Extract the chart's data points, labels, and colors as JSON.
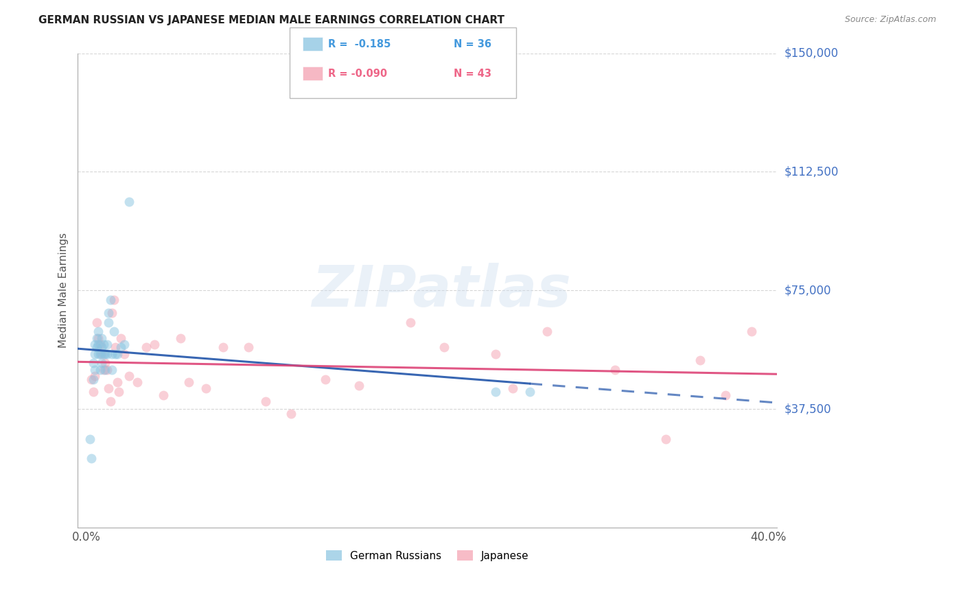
{
  "title": "GERMAN RUSSIAN VS JAPANESE MEDIAN MALE EARNINGS CORRELATION CHART",
  "source": "Source: ZipAtlas.com",
  "ylabel": "Median Male Earnings",
  "xlabel_ticks": [
    "0.0%",
    "",
    "",
    "",
    "",
    "",
    "",
    "",
    "40.0%"
  ],
  "xlabel_vals": [
    0.0,
    0.05,
    0.1,
    0.15,
    0.2,
    0.25,
    0.3,
    0.35,
    0.4
  ],
  "ylim": [
    0,
    150000
  ],
  "xlim": [
    -0.005,
    0.405
  ],
  "ytick_vals": [
    150000,
    112500,
    75000,
    37500
  ],
  "ytick_labels": [
    "$150,000",
    "$112,500",
    "$75,000",
    "$37,500"
  ],
  "watermark_text": "ZIPatlas",
  "german_russian_color": "#89c4e1",
  "japanese_color": "#f4a0b0",
  "background_color": "#ffffff",
  "grid_color": "#cccccc",
  "title_color": "#222222",
  "axis_label_color": "#555555",
  "right_label_color": "#4472c4",
  "dot_size": 100,
  "dot_alpha": 0.5,
  "blue_line_color": "#2255aa",
  "pink_line_color": "#dd4477",
  "legend_r1": "R =  -0.185",
  "legend_n1": "N = 36",
  "legend_r2": "R = -0.090",
  "legend_n2": "N = 43",
  "legend_color1": "#4499dd",
  "legend_color2": "#ee6688",
  "bottom_legend1": "German Russians",
  "bottom_legend2": "Japanese",
  "german_russian_x": [
    0.002,
    0.003,
    0.004,
    0.004,
    0.005,
    0.005,
    0.005,
    0.006,
    0.006,
    0.007,
    0.007,
    0.007,
    0.008,
    0.008,
    0.009,
    0.009,
    0.009,
    0.01,
    0.01,
    0.011,
    0.011,
    0.012,
    0.012,
    0.013,
    0.013,
    0.014,
    0.015,
    0.015,
    0.016,
    0.017,
    0.018,
    0.02,
    0.022,
    0.025,
    0.24,
    0.26
  ],
  "german_russian_y": [
    28000,
    22000,
    47000,
    52000,
    50000,
    55000,
    58000,
    57000,
    60000,
    55000,
    58000,
    62000,
    50000,
    55000,
    52000,
    57000,
    60000,
    55000,
    58000,
    50000,
    55000,
    55000,
    58000,
    65000,
    68000,
    72000,
    50000,
    55000,
    62000,
    55000,
    55000,
    57000,
    58000,
    103000,
    43000,
    43000
  ],
  "japanese_x": [
    0.003,
    0.004,
    0.005,
    0.006,
    0.007,
    0.008,
    0.009,
    0.01,
    0.011,
    0.012,
    0.013,
    0.014,
    0.015,
    0.016,
    0.017,
    0.018,
    0.019,
    0.02,
    0.022,
    0.025,
    0.03,
    0.035,
    0.04,
    0.045,
    0.055,
    0.06,
    0.07,
    0.08,
    0.095,
    0.105,
    0.12,
    0.14,
    0.16,
    0.19,
    0.21,
    0.24,
    0.25,
    0.27,
    0.31,
    0.34,
    0.36,
    0.375,
    0.39
  ],
  "japanese_y": [
    47000,
    43000,
    48000,
    65000,
    60000,
    58000,
    55000,
    50000,
    52000,
    50000,
    44000,
    40000,
    68000,
    72000,
    57000,
    46000,
    43000,
    60000,
    55000,
    48000,
    46000,
    57000,
    58000,
    42000,
    60000,
    46000,
    44000,
    57000,
    57000,
    40000,
    36000,
    47000,
    45000,
    65000,
    57000,
    55000,
    44000,
    62000,
    50000,
    28000,
    53000,
    42000,
    62000
  ]
}
